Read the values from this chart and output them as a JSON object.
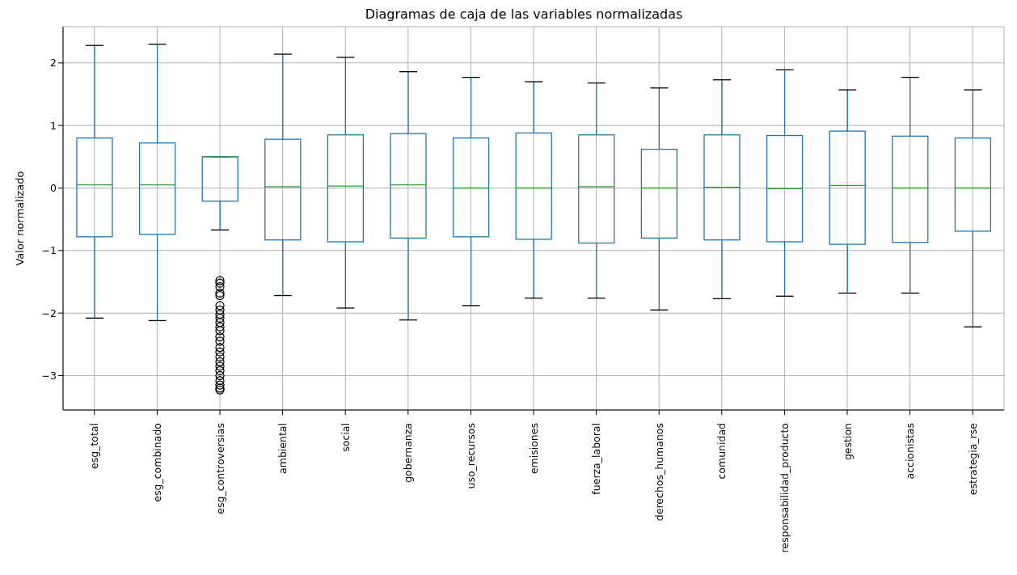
{
  "chart_data": {
    "type": "box",
    "title": "Diagramas de caja de las variables normalizadas",
    "ylabel": "Valor normalizado",
    "categories": [
      "esg_total",
      "esg_combinado",
      "esg_controversias",
      "ambiental",
      "social",
      "gobernanza",
      "uso_recursos",
      "emisiones",
      "fuerza_laboral",
      "derechos_humanos",
      "comunidad",
      "responsabilidad_producto",
      "gestion",
      "accionistas",
      "estrategia_rse"
    ],
    "boxes": [
      {
        "low": -2.08,
        "q1": -0.78,
        "median": 0.05,
        "q3": 0.8,
        "high": 2.28
      },
      {
        "low": -2.12,
        "q1": -0.74,
        "median": 0.05,
        "q3": 0.72,
        "high": 2.3
      },
      {
        "low": -0.67,
        "q1": -0.21,
        "median": 0.5,
        "q3": 0.5,
        "high": 0.5,
        "outliers": [
          -1.48,
          -1.52,
          -1.58,
          -1.68,
          -1.72,
          -1.88,
          -1.95,
          -2.02,
          -2.08,
          -2.15,
          -2.22,
          -2.28,
          -2.38,
          -2.45,
          -2.55,
          -2.62,
          -2.7,
          -2.78,
          -2.85,
          -2.92,
          -3.0,
          -3.08,
          -3.15,
          -3.2,
          -3.23
        ]
      },
      {
        "low": -1.72,
        "q1": -0.83,
        "median": 0.02,
        "q3": 0.78,
        "high": 2.14
      },
      {
        "low": -1.92,
        "q1": -0.86,
        "median": 0.03,
        "q3": 0.85,
        "high": 2.09
      },
      {
        "low": -2.11,
        "q1": -0.8,
        "median": 0.05,
        "q3": 0.87,
        "high": 1.86
      },
      {
        "low": -1.88,
        "q1": -0.78,
        "median": 0.0,
        "q3": 0.8,
        "high": 1.77
      },
      {
        "low": -1.76,
        "q1": -0.82,
        "median": 0.0,
        "q3": 0.88,
        "high": 1.7
      },
      {
        "low": -1.76,
        "q1": -0.88,
        "median": 0.02,
        "q3": 0.85,
        "high": 1.68
      },
      {
        "low": -1.95,
        "q1": -0.8,
        "median": 0.0,
        "q3": 0.62,
        "high": 1.6
      },
      {
        "low": -1.77,
        "q1": -0.83,
        "median": 0.01,
        "q3": 0.85,
        "high": 1.73
      },
      {
        "low": -1.73,
        "q1": -0.86,
        "median": -0.01,
        "q3": 0.84,
        "high": 1.89
      },
      {
        "low": -1.68,
        "q1": -0.9,
        "median": 0.04,
        "q3": 0.91,
        "high": 1.57
      },
      {
        "low": -1.68,
        "q1": -0.87,
        "median": 0.0,
        "q3": 0.83,
        "high": 1.77
      },
      {
        "low": -2.22,
        "q1": -0.69,
        "median": 0.0,
        "q3": 0.8,
        "high": 1.57
      }
    ],
    "color": "#1f77b4",
    "ylim": [
      -3.55,
      2.58
    ],
    "yticks": [
      {
        "value": -3,
        "label": "−3"
      },
      {
        "value": -2,
        "label": "−2"
      },
      {
        "value": -1,
        "label": "−1"
      },
      0,
      1,
      2
    ],
    "grid": true,
    "marker": "circle"
  }
}
